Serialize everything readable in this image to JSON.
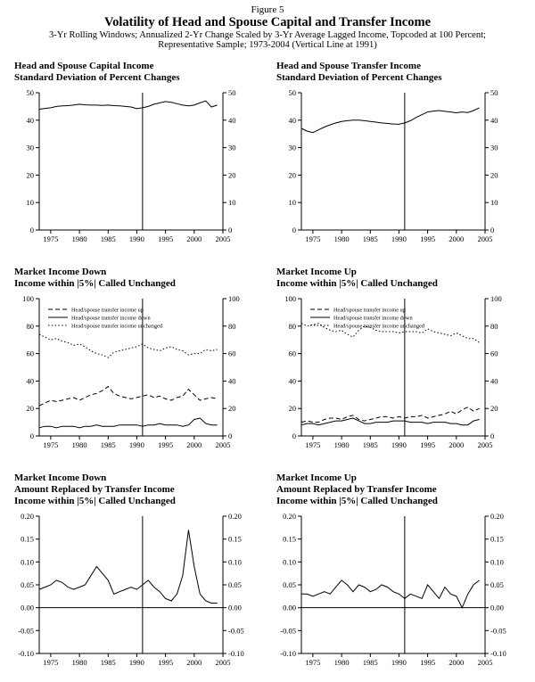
{
  "header": {
    "figure_label": "Figure 5",
    "title": "Volatility of Head and Spouse Capital and Transfer Income",
    "subtitle1": "3-Yr Rolling Windows; Annualized 2-Yr Change Scaled by 3-Yr Average Lagged Income, Topcoded at 100 Percent;",
    "subtitle2": "Representative Sample; 1973-2004 (Vertical Line at 1991)"
  },
  "chart_data": [
    {
      "id": "capital-income-sd",
      "type": "line",
      "title_lines": [
        "Head and Spouse Capital Income",
        "Standard Deviation of Percent Changes"
      ],
      "x_start": 1973,
      "xlim": [
        1973,
        2005
      ],
      "ylim": [
        0,
        50
      ],
      "yticks": [
        0,
        10,
        20,
        30,
        40,
        50
      ],
      "ytick_labels": [
        "0",
        "10",
        "20",
        "30",
        "40",
        "50"
      ],
      "xticks": [
        1975,
        1980,
        1985,
        1990,
        1995,
        2000,
        2005
      ],
      "xtick_labels": [
        "1975",
        "1980",
        "1985",
        "1990",
        "1995",
        "2000",
        "2005"
      ],
      "vline": 1991,
      "legend": false,
      "series": [
        {
          "name": "",
          "style": "solid",
          "values": [
            44.0,
            44.3,
            44.5,
            45.0,
            45.2,
            45.3,
            45.5,
            45.8,
            45.6,
            45.5,
            45.5,
            45.4,
            45.5,
            45.3,
            45.2,
            45.0,
            44.8,
            44.2,
            44.5,
            45.0,
            45.8,
            46.3,
            46.8,
            46.5,
            46.0,
            45.5,
            45.2,
            45.5,
            46.3,
            47.0,
            44.8,
            45.5
          ]
        }
      ]
    },
    {
      "id": "transfer-income-sd",
      "type": "line",
      "title_lines": [
        "Head and Spouse Transfer Income",
        "Standard Deviation of Percent Changes"
      ],
      "x_start": 1973,
      "xlim": [
        1973,
        2005
      ],
      "ylim": [
        0,
        50
      ],
      "yticks": [
        0,
        10,
        20,
        30,
        40,
        50
      ],
      "ytick_labels": [
        "0",
        "10",
        "20",
        "30",
        "40",
        "50"
      ],
      "xticks": [
        1975,
        1980,
        1985,
        1990,
        1995,
        2000,
        2005
      ],
      "xtick_labels": [
        "1975",
        "1980",
        "1985",
        "1990",
        "1995",
        "2000",
        "2005"
      ],
      "vline": 1991,
      "legend": false,
      "series": [
        {
          "name": "",
          "style": "solid",
          "values": [
            37.0,
            36.0,
            35.5,
            36.5,
            37.5,
            38.3,
            39.0,
            39.5,
            39.8,
            40.0,
            40.0,
            39.8,
            39.5,
            39.3,
            39.0,
            38.8,
            38.6,
            38.5,
            39.0,
            39.8,
            41.0,
            42.0,
            43.0,
            43.3,
            43.5,
            43.2,
            43.0,
            42.7,
            43.0,
            42.8,
            43.5,
            44.5
          ]
        }
      ]
    },
    {
      "id": "market-income-down-shares",
      "type": "line",
      "title_lines": [
        "Market Income Down",
        "Income within |5%| Called Unchanged"
      ],
      "x_start": 1973,
      "xlim": [
        1973,
        2005
      ],
      "ylim": [
        0,
        100
      ],
      "yticks": [
        0,
        20,
        40,
        60,
        80,
        100
      ],
      "ytick_labels": [
        "0",
        "20",
        "40",
        "60",
        "80",
        "100"
      ],
      "xticks": [
        1975,
        1980,
        1985,
        1990,
        1995,
        2000,
        2005
      ],
      "xtick_labels": [
        "1975",
        "1980",
        "1985",
        "1990",
        "1995",
        "2000",
        "2005"
      ],
      "vline": 1991,
      "legend": true,
      "series": [
        {
          "name": "Head/spouse transfer income up",
          "style": "dashed",
          "values": [
            22,
            24,
            26,
            25,
            26,
            27,
            28,
            26,
            28,
            30,
            31,
            33,
            36,
            31,
            29,
            28,
            27,
            28,
            29,
            30,
            28,
            29,
            27,
            26,
            28,
            29,
            34,
            30,
            26,
            27,
            28,
            27
          ]
        },
        {
          "name": "Head/spouse transfer income down",
          "style": "solid",
          "values": [
            6,
            7,
            7,
            6,
            7,
            7,
            7,
            6,
            7,
            7,
            8,
            7,
            7,
            7,
            8,
            8,
            8,
            8,
            7,
            8,
            8,
            9,
            8,
            8,
            8,
            7,
            8,
            12,
            13,
            9,
            8,
            8
          ]
        },
        {
          "name": "Head/spouse transfer income unchanged",
          "style": "dotted",
          "values": [
            74,
            72,
            70,
            71,
            69,
            68,
            66,
            67,
            65,
            62,
            60,
            59,
            57,
            61,
            62,
            63,
            64,
            65,
            67,
            64,
            63,
            62,
            64,
            65,
            63,
            62,
            59,
            60,
            60,
            63,
            62,
            63
          ]
        }
      ]
    },
    {
      "id": "market-income-up-shares",
      "type": "line",
      "title_lines": [
        "Market Income Up",
        "Income within |5%| Called Unchanged"
      ],
      "x_start": 1973,
      "xlim": [
        1973,
        2005
      ],
      "ylim": [
        0,
        100
      ],
      "yticks": [
        0,
        20,
        40,
        60,
        80,
        100
      ],
      "ytick_labels": [
        "0",
        "20",
        "40",
        "60",
        "80",
        "100"
      ],
      "xticks": [
        1975,
        1980,
        1985,
        1990,
        1995,
        2000,
        2005
      ],
      "xtick_labels": [
        "1975",
        "1980",
        "1985",
        "1990",
        "1995",
        "2000",
        "2005"
      ],
      "vline": 1991,
      "legend": true,
      "series": [
        {
          "name": "Head/spouse transfer income up",
          "style": "dashed",
          "values": [
            10,
            11,
            10,
            10,
            12,
            13,
            13,
            12,
            14,
            15,
            12,
            11,
            12,
            13,
            14,
            14,
            13,
            14,
            13,
            14,
            14,
            15,
            13,
            14,
            15,
            16,
            18,
            16,
            19,
            21,
            18,
            20
          ]
        },
        {
          "name": "Head/spouse transfer income down",
          "style": "solid",
          "values": [
            8,
            9,
            9,
            8,
            9,
            10,
            11,
            11,
            12,
            13,
            11,
            9,
            9,
            10,
            10,
            10,
            11,
            11,
            11,
            10,
            10,
            10,
            9,
            10,
            10,
            10,
            9,
            9,
            8,
            8,
            11,
            12
          ]
        },
        {
          "name": "Head/spouse transfer income unchanged",
          "style": "dotted",
          "values": [
            82,
            80,
            81,
            82,
            79,
            77,
            76,
            77,
            74,
            72,
            77,
            80,
            79,
            77,
            76,
            76,
            76,
            75,
            76,
            76,
            76,
            75,
            78,
            76,
            75,
            74,
            73,
            75,
            73,
            71,
            71,
            68
          ]
        }
      ]
    },
    {
      "id": "market-income-down-replaced",
      "type": "line",
      "title_lines": [
        "Market Income Down",
        "Amount Replaced by Transfer Income",
        "Income within |5%| Called Unchanged"
      ],
      "x_start": 1973,
      "xlim": [
        1973,
        2005
      ],
      "ylim": [
        -0.1,
        0.2
      ],
      "yticks": [
        -0.1,
        -0.05,
        0.0,
        0.05,
        0.1,
        0.15,
        0.2
      ],
      "ytick_labels": [
        "-0.10",
        "-0.05",
        "0.00",
        "0.05",
        "0.10",
        "0.15",
        "0.20"
      ],
      "xticks": [
        1975,
        1980,
        1985,
        1990,
        1995,
        2000,
        2005
      ],
      "xtick_labels": [
        "1975",
        "1980",
        "1985",
        "1990",
        "1995",
        "2000",
        "2005"
      ],
      "vline": 1991,
      "hline": 0.0,
      "legend": false,
      "series": [
        {
          "name": "",
          "style": "solid",
          "values": [
            0.04,
            0.045,
            0.05,
            0.06,
            0.055,
            0.045,
            0.04,
            0.045,
            0.05,
            0.07,
            0.09,
            0.075,
            0.06,
            0.03,
            0.035,
            0.04,
            0.045,
            0.04,
            0.05,
            0.06,
            0.045,
            0.035,
            0.02,
            0.015,
            0.03,
            0.07,
            0.17,
            0.09,
            0.03,
            0.015,
            0.01,
            0.01
          ]
        }
      ]
    },
    {
      "id": "market-income-up-replaced",
      "type": "line",
      "title_lines": [
        "Market Income Up",
        "Amount Replaced by Transfer Income",
        "Income within |5%| Called Unchanged"
      ],
      "x_start": 1973,
      "xlim": [
        1973,
        2005
      ],
      "ylim": [
        -0.1,
        0.2
      ],
      "yticks": [
        -0.1,
        -0.05,
        0.0,
        0.05,
        0.1,
        0.15,
        0.2
      ],
      "ytick_labels": [
        "-0.10",
        "-0.05",
        "0.00",
        "0.05",
        "0.10",
        "0.15",
        "0.20"
      ],
      "xticks": [
        1975,
        1980,
        1985,
        1990,
        1995,
        2000,
        2005
      ],
      "xtick_labels": [
        "1975",
        "1980",
        "1985",
        "1990",
        "1995",
        "2000",
        "2005"
      ],
      "vline": 1991,
      "hline": 0.0,
      "legend": false,
      "series": [
        {
          "name": "",
          "style": "solid",
          "values": [
            0.03,
            0.03,
            0.025,
            0.03,
            0.035,
            0.03,
            0.045,
            0.06,
            0.05,
            0.035,
            0.05,
            0.045,
            0.035,
            0.04,
            0.05,
            0.045,
            0.035,
            0.03,
            0.02,
            0.03,
            0.025,
            0.02,
            0.05,
            0.035,
            0.02,
            0.045,
            0.03,
            0.025,
            0.0,
            0.03,
            0.05,
            0.06
          ]
        }
      ]
    }
  ]
}
